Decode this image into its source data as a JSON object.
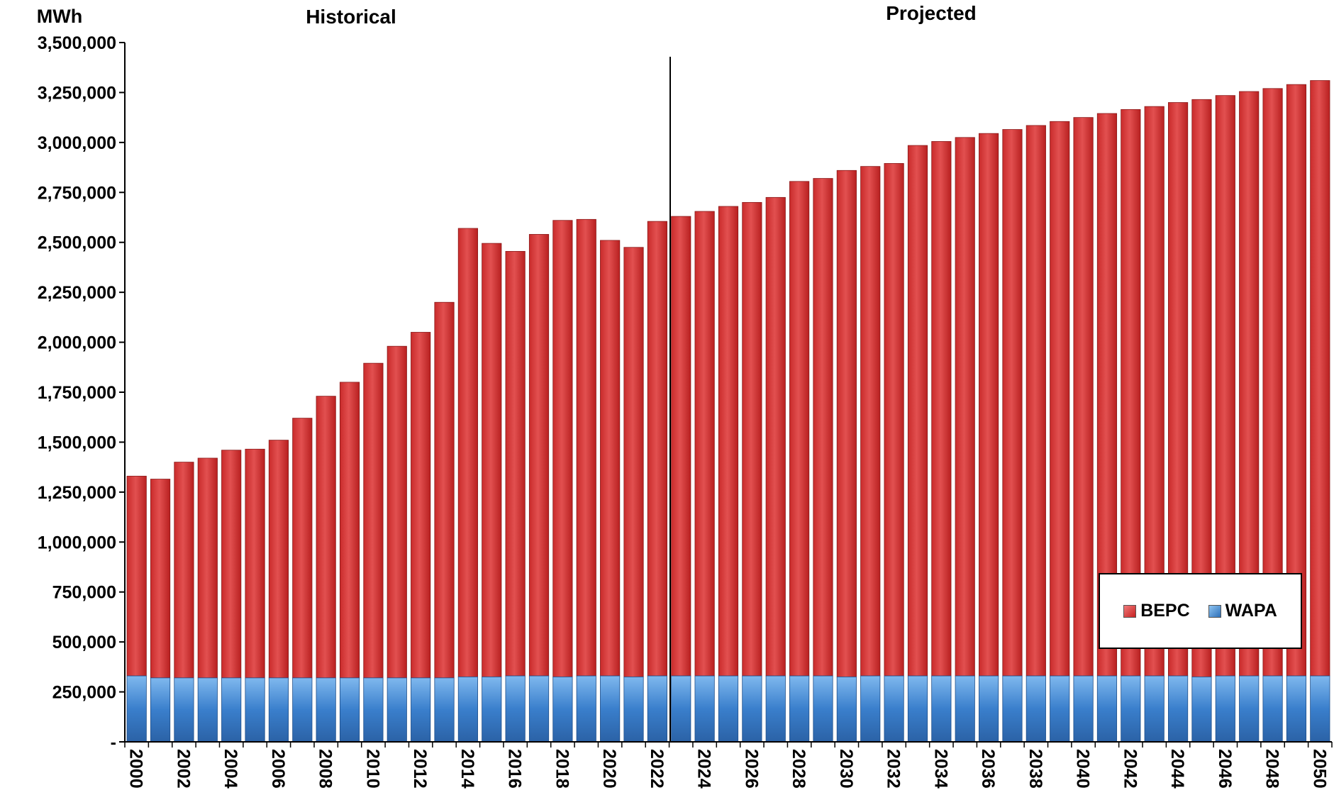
{
  "chart_data": {
    "type": "bar",
    "stacked": true,
    "ylabel": "MWh",
    "annotations": {
      "historical": "Historical",
      "projected": "Projected"
    },
    "historical_end_year": 2022,
    "ylim": [
      0,
      3500000
    ],
    "yticks": [
      0,
      250000,
      500000,
      750000,
      1000000,
      1250000,
      1500000,
      1750000,
      2000000,
      2250000,
      2500000,
      2750000,
      3000000,
      3250000,
      3500000
    ],
    "ytick_labels": [
      "-",
      "250,000",
      "500,000",
      "750,000",
      "1,000,000",
      "1,250,000",
      "1,500,000",
      "1,750,000",
      "2,000,000",
      "2,250,000",
      "2,500,000",
      "2,750,000",
      "3,000,000",
      "3,250,000",
      "3,500,000"
    ],
    "categories": [
      2000,
      2001,
      2002,
      2003,
      2004,
      2005,
      2006,
      2007,
      2008,
      2009,
      2010,
      2011,
      2012,
      2013,
      2014,
      2015,
      2016,
      2017,
      2018,
      2019,
      2020,
      2021,
      2022,
      2023,
      2024,
      2025,
      2026,
      2027,
      2028,
      2029,
      2030,
      2031,
      2032,
      2033,
      2034,
      2035,
      2036,
      2037,
      2038,
      2039,
      2040,
      2041,
      2042,
      2043,
      2044,
      2045,
      2046,
      2047,
      2048,
      2049,
      2050
    ],
    "xtick_labels": [
      "2000",
      "2002",
      "2004",
      "2006",
      "2008",
      "2010",
      "2012",
      "2014",
      "2016",
      "2018",
      "2020",
      "2022",
      "2024",
      "2026",
      "2028",
      "2030",
      "2032",
      "2034",
      "2036",
      "2038",
      "2040",
      "2042",
      "2044",
      "2046",
      "2048",
      "2050"
    ],
    "legend_position": "bottom-right",
    "series": [
      {
        "name": "WAPA",
        "color": "#3a7fcc",
        "values": [
          330000,
          320000,
          320000,
          320000,
          320000,
          320000,
          320000,
          320000,
          320000,
          320000,
          320000,
          320000,
          320000,
          320000,
          325000,
          325000,
          330000,
          330000,
          325000,
          330000,
          330000,
          325000,
          330000,
          330000,
          330000,
          330000,
          330000,
          330000,
          330000,
          330000,
          325000,
          330000,
          330000,
          330000,
          330000,
          330000,
          330000,
          330000,
          330000,
          330000,
          330000,
          330000,
          330000,
          330000,
          330000,
          325000,
          330000,
          330000,
          330000,
          330000,
          330000
        ]
      },
      {
        "name": "BEPC",
        "color": "#d63a3a",
        "values": [
          1000000,
          995000,
          1080000,
          1100000,
          1140000,
          1145000,
          1190000,
          1300000,
          1410000,
          1480000,
          1575000,
          1660000,
          1730000,
          1880000,
          2245000,
          2170000,
          2125000,
          2210000,
          2285000,
          2285000,
          2180000,
          2150000,
          2275000,
          2300000,
          2325000,
          2350000,
          2370000,
          2395000,
          2475000,
          2490000,
          2535000,
          2550000,
          2565000,
          2655000,
          2675000,
          2695000,
          2715000,
          2735000,
          2755000,
          2775000,
          2795000,
          2815000,
          2835000,
          2850000,
          2870000,
          2890000,
          2905000,
          2925000,
          2940000,
          2960000,
          2980000
        ]
      }
    ]
  }
}
